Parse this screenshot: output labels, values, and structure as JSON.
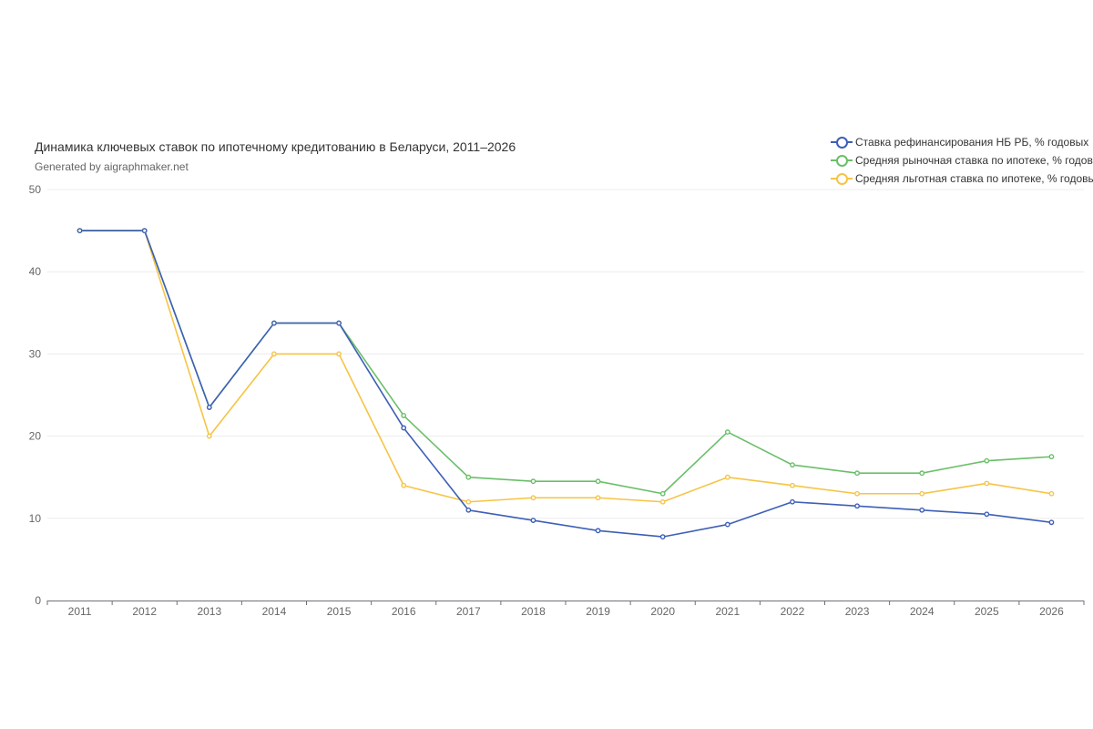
{
  "chart_data": {
    "type": "line",
    "title": "Динамика ключевых ставок по ипотечному кредитованию в Беларуси, 2011–2026",
    "subtitle": "Generated by aigraphmaker.net",
    "xlabel": "",
    "ylabel": "",
    "categories": [
      "2011",
      "2012",
      "2013",
      "2014",
      "2015",
      "2016",
      "2017",
      "2018",
      "2019",
      "2020",
      "2021",
      "2022",
      "2023",
      "2024",
      "2025",
      "2026"
    ],
    "ylim": [
      0,
      50
    ],
    "yticks": [
      0,
      10,
      20,
      30,
      40,
      50
    ],
    "grid": true,
    "legend_position": "top-right",
    "series": [
      {
        "name": "Ставка рефинансирования НБ РБ, % годовых",
        "color": "#3d5fb6",
        "values": [
          45,
          45,
          23.5,
          33.75,
          33.75,
          21,
          11,
          9.75,
          8.5,
          7.75,
          9.25,
          12,
          11.5,
          11,
          10.5,
          9.5
        ]
      },
      {
        "name": "Средняя рыночная ставка по ипотеке, % годовых",
        "color": "#6abf69",
        "values": [
          45,
          45,
          23.5,
          33.75,
          33.75,
          22.5,
          15,
          14.5,
          14.5,
          13,
          20.5,
          16.5,
          15.5,
          15.5,
          17,
          17.5
        ]
      },
      {
        "name": "Средняя льготная ставка по ипотеке, % годовых",
        "color": "#f6c445",
        "values": [
          45,
          45,
          20,
          30,
          30,
          14,
          12,
          12.5,
          12.5,
          12,
          15,
          14,
          13,
          13,
          14.25,
          13
        ]
      }
    ]
  }
}
